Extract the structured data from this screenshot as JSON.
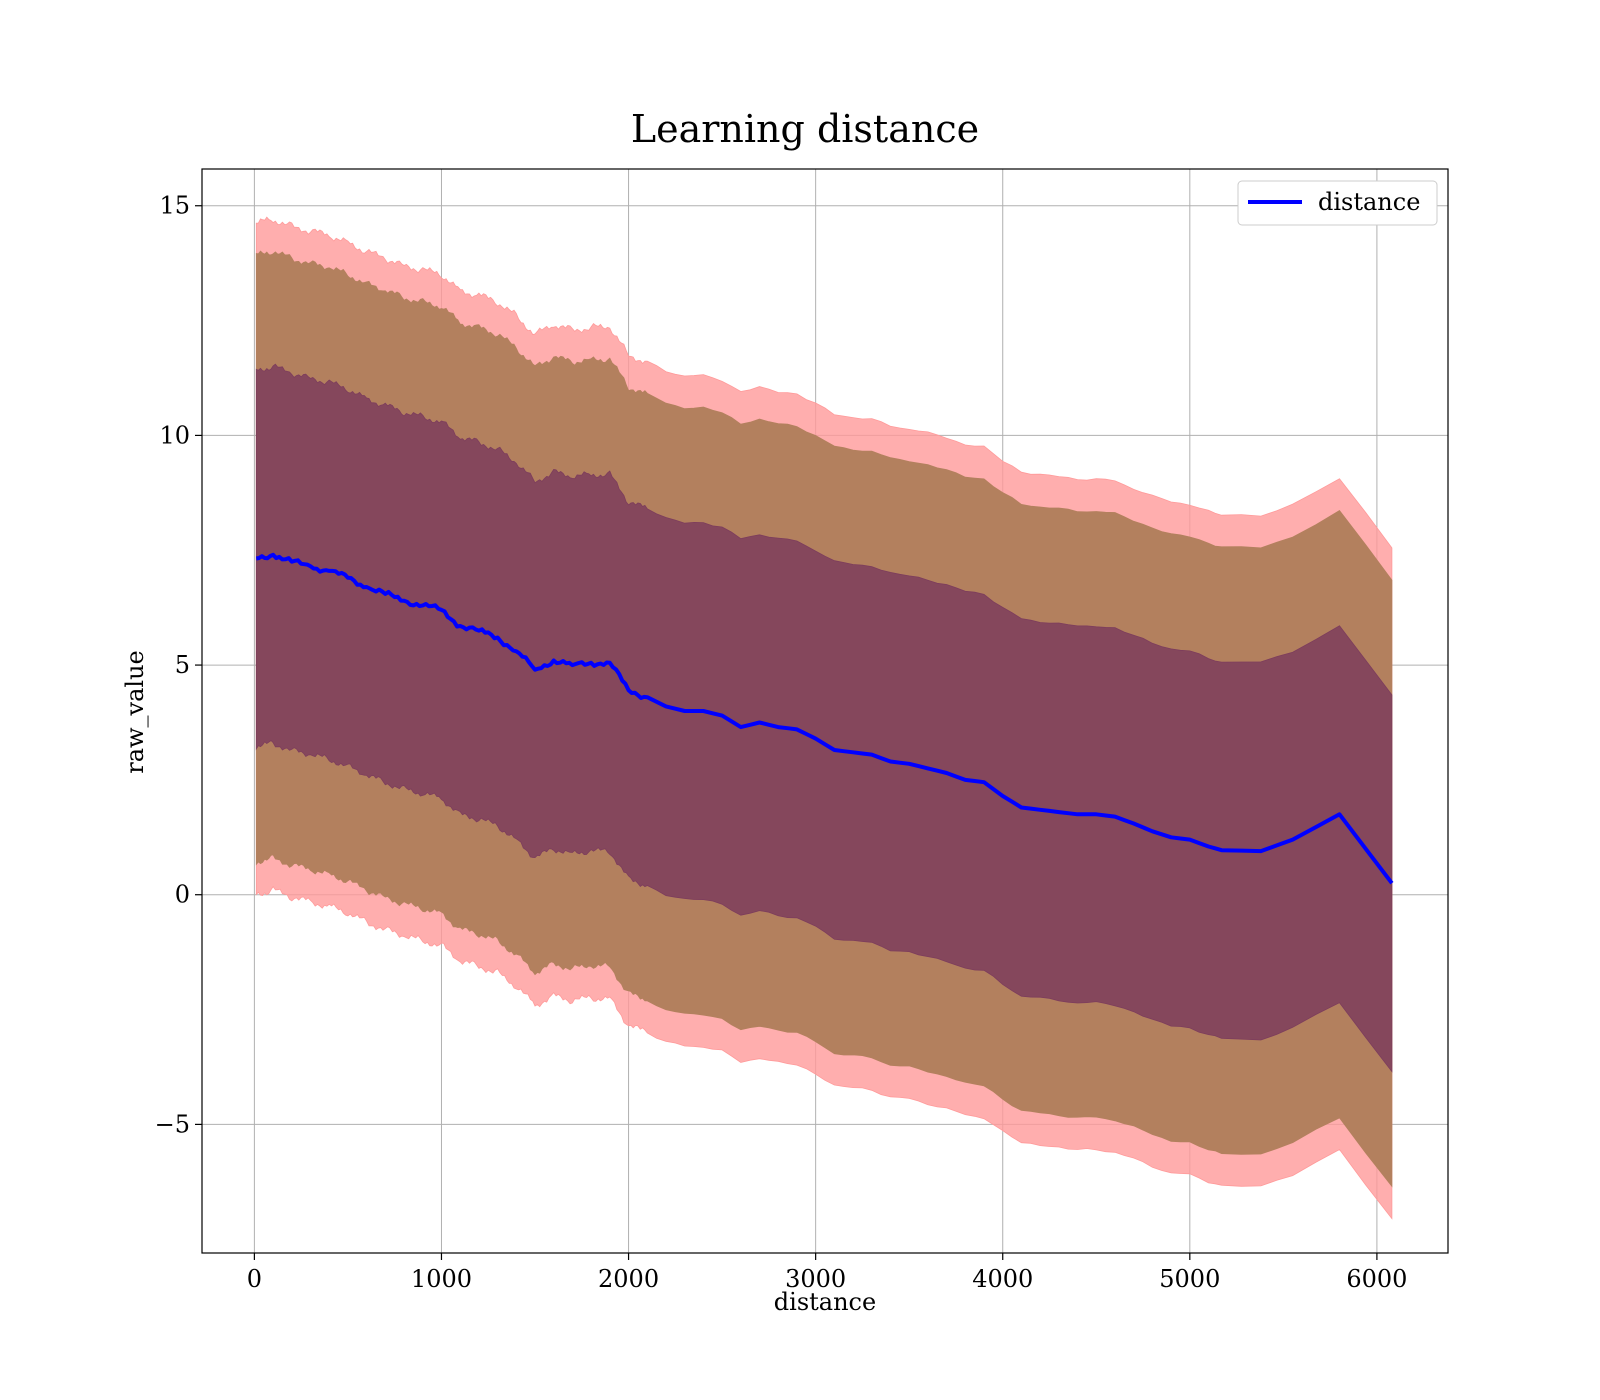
{
  "chart_data": {
    "type": "line",
    "title": "Learning distance",
    "xlabel": "distance",
    "ylabel": "raw_value",
    "xlim": [
      -280,
      6380
    ],
    "ylim": [
      -7.8,
      15.8
    ],
    "xticks": [
      0,
      1000,
      2000,
      3000,
      4000,
      5000,
      6000
    ],
    "xtick_labels": [
      "0",
      "1000",
      "2000",
      "3000",
      "4000",
      "5000",
      "6000"
    ],
    "yticks": [
      -5,
      0,
      5,
      10,
      15
    ],
    "ytick_labels": [
      "−5",
      "0",
      "5",
      "10",
      "15"
    ],
    "grid": true,
    "legend": {
      "position": "top-right",
      "entries": [
        "distance"
      ]
    },
    "colors": {
      "line": "#0000ff",
      "band_outer": "#ff9a9a",
      "band_middle": "#b3805e",
      "band_inner": "#7d3d5c",
      "grid": "#b0b0b0"
    },
    "series": [
      {
        "name": "distance",
        "x": [
          10,
          100,
          200,
          300,
          400,
          500,
          600,
          700,
          800,
          900,
          1000,
          1100,
          1200,
          1300,
          1400,
          1500,
          1600,
          1700,
          1800,
          1900,
          2000,
          2100,
          2200,
          2300,
          2400,
          2500,
          2600,
          2700,
          2800,
          2900,
          3000,
          3100,
          3200,
          3300,
          3400,
          3500,
          3600,
          3700,
          3800,
          3900,
          4000,
          4100,
          4200,
          4300,
          4400,
          4500,
          4600,
          4700,
          4800,
          4900,
          5000,
          5100,
          5170,
          5380,
          5550,
          5800,
          6080
        ],
        "y": [
          7.32,
          7.4,
          7.25,
          7.15,
          7.05,
          6.9,
          6.7,
          6.55,
          6.4,
          6.3,
          6.2,
          5.85,
          5.75,
          5.6,
          5.3,
          4.9,
          5.1,
          5.0,
          5.05,
          5.05,
          4.45,
          4.3,
          4.1,
          4.0,
          4.0,
          3.9,
          3.65,
          3.75,
          3.65,
          3.6,
          3.4,
          3.15,
          3.1,
          3.05,
          2.9,
          2.85,
          2.75,
          2.65,
          2.5,
          2.45,
          2.15,
          1.9,
          1.85,
          1.8,
          1.75,
          1.75,
          1.7,
          1.55,
          1.38,
          1.25,
          1.2,
          1.05,
          0.97,
          0.95,
          1.2,
          1.75,
          0.25
        ],
        "band_inner": [
          4.1,
          4.1,
          4.1,
          4.1,
          4.1,
          4.1,
          4.1,
          4.1,
          4.1,
          4.1,
          4.1,
          4.1,
          4.1,
          4.1,
          4.1,
          4.1,
          4.1,
          4.1,
          4.1,
          4.1,
          4.1,
          4.1,
          4.1,
          4.1,
          4.1,
          4.1,
          4.1,
          4.1,
          4.1,
          4.1,
          4.1,
          4.1,
          4.1,
          4.1,
          4.1,
          4.1,
          4.1,
          4.1,
          4.1,
          4.1,
          4.1,
          4.1,
          4.1,
          4.1,
          4.1,
          4.1,
          4.1,
          4.1,
          4.1,
          4.1,
          4.1,
          4.1,
          4.1,
          4.1,
          4.1,
          4.1,
          4.1
        ],
        "band_middle": [
          6.6,
          6.6,
          6.6,
          6.6,
          6.6,
          6.6,
          6.6,
          6.6,
          6.6,
          6.6,
          6.6,
          6.6,
          6.6,
          6.6,
          6.6,
          6.6,
          6.6,
          6.6,
          6.6,
          6.6,
          6.6,
          6.6,
          6.6,
          6.6,
          6.6,
          6.6,
          6.6,
          6.6,
          6.6,
          6.6,
          6.6,
          6.6,
          6.6,
          6.6,
          6.6,
          6.6,
          6.6,
          6.6,
          6.6,
          6.6,
          6.6,
          6.6,
          6.6,
          6.6,
          6.6,
          6.6,
          6.6,
          6.6,
          6.6,
          6.6,
          6.6,
          6.6,
          6.6,
          6.6,
          6.6,
          6.6,
          6.6
        ],
        "band_outer": [
          7.3,
          7.3,
          7.3,
          7.3,
          7.3,
          7.3,
          7.3,
          7.3,
          7.3,
          7.3,
          7.3,
          7.3,
          7.3,
          7.3,
          7.3,
          7.3,
          7.3,
          7.3,
          7.3,
          7.3,
          7.3,
          7.3,
          7.3,
          7.3,
          7.3,
          7.3,
          7.3,
          7.3,
          7.3,
          7.3,
          7.3,
          7.3,
          7.3,
          7.3,
          7.3,
          7.3,
          7.3,
          7.3,
          7.3,
          7.3,
          7.3,
          7.3,
          7.3,
          7.3,
          7.3,
          7.3,
          7.3,
          7.3,
          7.3,
          7.3,
          7.3,
          7.3,
          7.3,
          7.3,
          7.3,
          7.3,
          7.3
        ]
      }
    ]
  }
}
